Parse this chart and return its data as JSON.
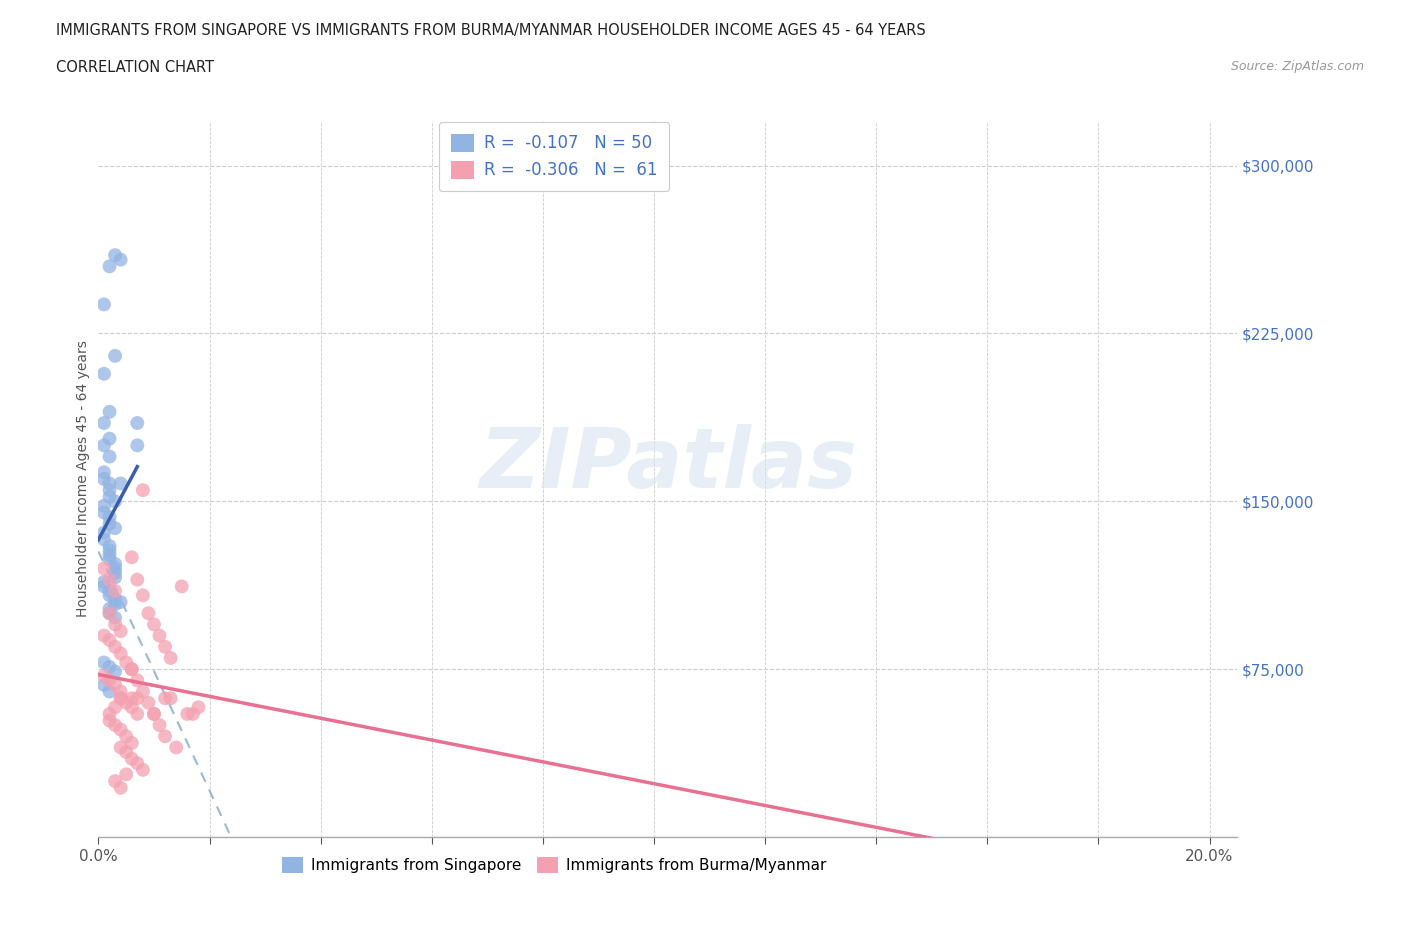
{
  "title_line1": "IMMIGRANTS FROM SINGAPORE VS IMMIGRANTS FROM BURMA/MYANMAR HOUSEHOLDER INCOME AGES 45 - 64 YEARS",
  "title_line2": "CORRELATION CHART",
  "source_text": "Source: ZipAtlas.com",
  "ylabel": "Householder Income Ages 45 - 64 years",
  "xlim": [
    0.0,
    0.205
  ],
  "ylim": [
    0,
    320000
  ],
  "xticks": [
    0.0,
    0.02,
    0.04,
    0.06,
    0.08,
    0.1,
    0.12,
    0.14,
    0.16,
    0.18,
    0.2
  ],
  "ytick_positions": [
    0,
    75000,
    150000,
    225000,
    300000
  ],
  "grid_color": "#cccccc",
  "background_color": "#ffffff",
  "watermark_text": "ZIPatlas",
  "singapore_color": "#92b4e3",
  "burma_color": "#f4a0b0",
  "singapore_line_color": "#3a5faa",
  "burma_line_color": "#e87090",
  "trend_line_color": "#9ab8d8",
  "singapore_scatter": [
    [
      0.002,
      255000
    ],
    [
      0.003,
      260000
    ],
    [
      0.004,
      258000
    ],
    [
      0.001,
      238000
    ],
    [
      0.001,
      207000
    ],
    [
      0.001,
      185000
    ],
    [
      0.002,
      190000
    ],
    [
      0.002,
      178000
    ],
    [
      0.003,
      215000
    ],
    [
      0.001,
      175000
    ],
    [
      0.002,
      170000
    ],
    [
      0.001,
      163000
    ],
    [
      0.001,
      160000
    ],
    [
      0.002,
      158000
    ],
    [
      0.002,
      155000
    ],
    [
      0.002,
      152000
    ],
    [
      0.003,
      150000
    ],
    [
      0.001,
      148000
    ],
    [
      0.001,
      145000
    ],
    [
      0.002,
      143000
    ],
    [
      0.002,
      140000
    ],
    [
      0.003,
      138000
    ],
    [
      0.001,
      136000
    ],
    [
      0.001,
      133000
    ],
    [
      0.002,
      130000
    ],
    [
      0.002,
      128000
    ],
    [
      0.002,
      126000
    ],
    [
      0.002,
      124000
    ],
    [
      0.003,
      122000
    ],
    [
      0.003,
      120000
    ],
    [
      0.003,
      118000
    ],
    [
      0.003,
      116000
    ],
    [
      0.001,
      114000
    ],
    [
      0.001,
      112000
    ],
    [
      0.002,
      110000
    ],
    [
      0.002,
      108000
    ],
    [
      0.003,
      106000
    ],
    [
      0.003,
      104000
    ],
    [
      0.002,
      102000
    ],
    [
      0.002,
      100000
    ],
    [
      0.003,
      98000
    ],
    [
      0.001,
      78000
    ],
    [
      0.002,
      76000
    ],
    [
      0.003,
      74000
    ],
    [
      0.001,
      68000
    ],
    [
      0.002,
      65000
    ],
    [
      0.007,
      185000
    ],
    [
      0.007,
      175000
    ],
    [
      0.004,
      158000
    ],
    [
      0.004,
      105000
    ]
  ],
  "burma_scatter": [
    [
      0.001,
      120000
    ],
    [
      0.002,
      115000
    ],
    [
      0.003,
      110000
    ],
    [
      0.002,
      100000
    ],
    [
      0.003,
      95000
    ],
    [
      0.004,
      92000
    ],
    [
      0.001,
      90000
    ],
    [
      0.002,
      88000
    ],
    [
      0.003,
      85000
    ],
    [
      0.004,
      82000
    ],
    [
      0.005,
      78000
    ],
    [
      0.006,
      75000
    ],
    [
      0.001,
      72000
    ],
    [
      0.002,
      70000
    ],
    [
      0.003,
      68000
    ],
    [
      0.004,
      65000
    ],
    [
      0.004,
      62000
    ],
    [
      0.005,
      60000
    ],
    [
      0.006,
      58000
    ],
    [
      0.007,
      55000
    ],
    [
      0.002,
      52000
    ],
    [
      0.003,
      50000
    ],
    [
      0.004,
      48000
    ],
    [
      0.005,
      45000
    ],
    [
      0.006,
      42000
    ],
    [
      0.004,
      40000
    ],
    [
      0.005,
      38000
    ],
    [
      0.006,
      35000
    ],
    [
      0.007,
      33000
    ],
    [
      0.008,
      30000
    ],
    [
      0.005,
      28000
    ],
    [
      0.003,
      25000
    ],
    [
      0.004,
      22000
    ],
    [
      0.006,
      125000
    ],
    [
      0.007,
      115000
    ],
    [
      0.008,
      108000
    ],
    [
      0.009,
      100000
    ],
    [
      0.01,
      95000
    ],
    [
      0.011,
      90000
    ],
    [
      0.012,
      85000
    ],
    [
      0.013,
      80000
    ],
    [
      0.006,
      75000
    ],
    [
      0.007,
      70000
    ],
    [
      0.008,
      65000
    ],
    [
      0.009,
      60000
    ],
    [
      0.01,
      55000
    ],
    [
      0.011,
      50000
    ],
    [
      0.012,
      45000
    ],
    [
      0.014,
      40000
    ],
    [
      0.015,
      112000
    ],
    [
      0.016,
      55000
    ],
    [
      0.017,
      55000
    ],
    [
      0.018,
      58000
    ],
    [
      0.008,
      155000
    ],
    [
      0.01,
      55000
    ],
    [
      0.012,
      62000
    ],
    [
      0.013,
      62000
    ],
    [
      0.006,
      62000
    ],
    [
      0.007,
      62000
    ],
    [
      0.004,
      62000
    ],
    [
      0.003,
      58000
    ],
    [
      0.002,
      55000
    ]
  ]
}
